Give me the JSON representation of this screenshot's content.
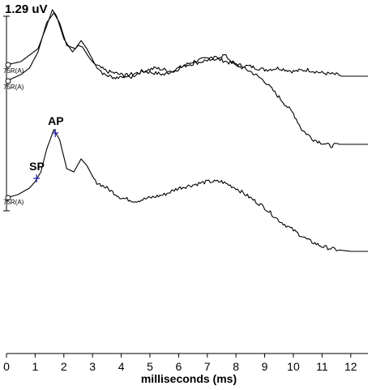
{
  "chart_data": {
    "type": "line",
    "scale_label": "1.29 uV",
    "xlabel": "milliseconds (ms)",
    "ylabel": "",
    "xlim": [
      0,
      12.6
    ],
    "x_ticks": [
      0,
      1,
      2,
      3,
      4,
      5,
      6,
      7,
      8,
      9,
      10,
      11,
      12
    ],
    "series": [
      {
        "name": "75R(A)",
        "baseline": 0,
        "label_at": -0.25,
        "points": [
          [
            0,
            0
          ],
          [
            0.5,
            0.1
          ],
          [
            0.8,
            0.3
          ],
          [
            1.1,
            0.5
          ],
          [
            1.4,
            1.2
          ],
          [
            1.6,
            1.7
          ],
          [
            1.75,
            1.5
          ],
          [
            2.0,
            0.8
          ],
          [
            2.3,
            0.4
          ],
          [
            2.5,
            0.6
          ],
          [
            2.65,
            0.55
          ],
          [
            2.9,
            0.2
          ],
          [
            3.1,
            0
          ],
          [
            3.4,
            -0.3
          ],
          [
            3.8,
            -0.4
          ],
          [
            4.3,
            -0.3
          ],
          [
            4.8,
            -0.2
          ],
          [
            5.5,
            -0.3
          ],
          [
            6.0,
            -0.1
          ],
          [
            6.5,
            0.1
          ],
          [
            7.0,
            0.2
          ],
          [
            7.5,
            0.15
          ],
          [
            8.0,
            0
          ],
          [
            8.5,
            -0.05
          ],
          [
            9.0,
            -0.15
          ],
          [
            9.5,
            -0.1
          ],
          [
            10.0,
            -0.2
          ],
          [
            10.5,
            -0.15
          ],
          [
            11.0,
            -0.25
          ],
          [
            11.5,
            -0.3
          ],
          [
            11.7,
            -0.35
          ],
          [
            12.6,
            -0.35
          ]
        ]
      },
      {
        "name": "75R(A)",
        "baseline": -0.5,
        "label_at": -0.75,
        "points": [
          [
            0,
            -0.5
          ],
          [
            0.5,
            -0.3
          ],
          [
            0.8,
            -0.1
          ],
          [
            1.1,
            0.4
          ],
          [
            1.4,
            1.3
          ],
          [
            1.65,
            1.6
          ],
          [
            1.85,
            1.3
          ],
          [
            2.1,
            0.6
          ],
          [
            2.4,
            0.5
          ],
          [
            2.6,
            0.75
          ],
          [
            2.8,
            0.5
          ],
          [
            3.1,
            0
          ],
          [
            3.5,
            -0.2
          ],
          [
            4.0,
            -0.3
          ],
          [
            4.3,
            -0.4
          ],
          [
            4.7,
            -0.2
          ],
          [
            5.2,
            -0.1
          ],
          [
            5.8,
            -0.2
          ],
          [
            6.3,
            0
          ],
          [
            6.8,
            0.1
          ],
          [
            7.2,
            0.2
          ],
          [
            7.6,
            0.3
          ],
          [
            8.0,
            0
          ],
          [
            8.5,
            -0.2
          ],
          [
            9.0,
            -0.5
          ],
          [
            9.5,
            -1.0
          ],
          [
            10.0,
            -1.5
          ],
          [
            10.3,
            -2.0
          ],
          [
            10.7,
            -2.3
          ],
          [
            11.0,
            -2.4
          ],
          [
            11.3,
            -2.5
          ],
          [
            11.6,
            -2.45
          ],
          [
            12.6,
            -2.45
          ]
        ]
      },
      {
        "name": "75R(A)",
        "baseline": -4.1,
        "label_at": -4.3,
        "points": [
          [
            0,
            -4.1
          ],
          [
            0.4,
            -4.0
          ],
          [
            0.8,
            -3.8
          ],
          [
            1.0,
            -3.6
          ],
          [
            1.2,
            -3.3
          ],
          [
            1.4,
            -2.6
          ],
          [
            1.65,
            -2.0
          ],
          [
            1.85,
            -2.3
          ],
          [
            2.1,
            -3.2
          ],
          [
            2.35,
            -3.3
          ],
          [
            2.6,
            -2.9
          ],
          [
            2.8,
            -3.1
          ],
          [
            3.1,
            -3.6
          ],
          [
            3.5,
            -3.8
          ],
          [
            4.0,
            -4.1
          ],
          [
            4.5,
            -4.2
          ],
          [
            5.0,
            -4.1
          ],
          [
            5.5,
            -4.0
          ],
          [
            6.0,
            -3.8
          ],
          [
            6.5,
            -3.7
          ],
          [
            7.0,
            -3.6
          ],
          [
            7.5,
            -3.6
          ],
          [
            8.0,
            -3.8
          ],
          [
            8.5,
            -4.1
          ],
          [
            9.0,
            -4.4
          ],
          [
            9.5,
            -4.8
          ],
          [
            10.0,
            -5.1
          ],
          [
            10.5,
            -5.4
          ],
          [
            11.0,
            -5.6
          ],
          [
            11.5,
            -5.7
          ],
          [
            12.0,
            -5.75
          ],
          [
            12.6,
            -5.75
          ]
        ]
      }
    ],
    "markers": [
      {
        "label": "SP",
        "x": 1.05,
        "y": -3.5
      },
      {
        "label": "AP",
        "x": 1.7,
        "y": -2.1
      }
    ]
  }
}
